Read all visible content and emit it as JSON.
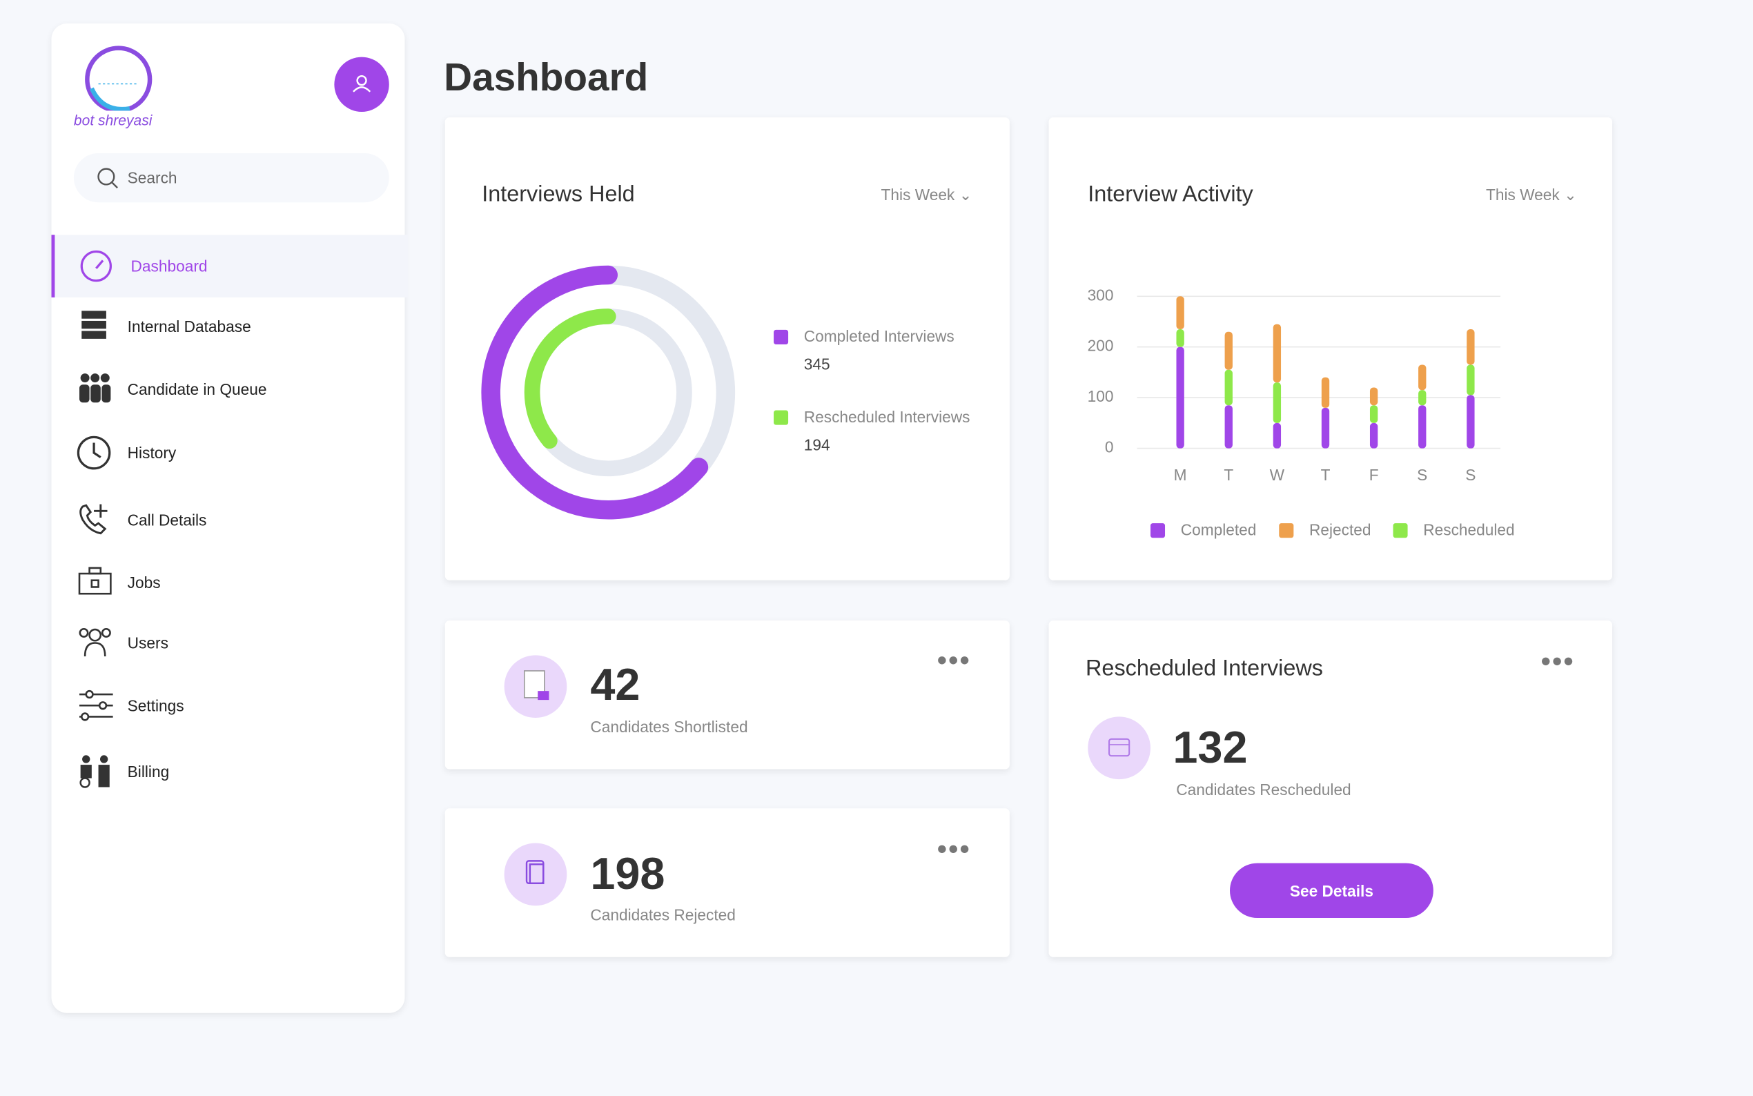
{
  "logo": {
    "text": "bot shreyasi"
  },
  "sidebar": {
    "search_placeholder": "Search",
    "nav": [
      "Dashboard",
      "Internal Database",
      "Candidate in Queue",
      "History",
      "Call Details",
      "Jobs",
      "Users",
      "Settings",
      "Billing"
    ]
  },
  "header": {
    "title": "Dashboard"
  },
  "chart_data": [
    {
      "type": "donut",
      "title": "Interviews Held",
      "period": "This Week",
      "categories": [
        "Completed Interviews",
        "Rescheduled Interviews"
      ],
      "values": [
        345,
        194
      ],
      "colors": [
        "#a046e8",
        "#8ee84a"
      ]
    },
    {
      "type": "bar",
      "stacked": true,
      "title": "Interview Activity",
      "period": "This Week",
      "categories": [
        "M",
        "T",
        "W",
        "T",
        "F",
        "S",
        "S"
      ],
      "series": [
        {
          "name": "Completed",
          "color": "#a046e8",
          "values": [
            200,
            85,
            50,
            80,
            50,
            85,
            105
          ]
        },
        {
          "name": "Rejected",
          "color": "#eea04c",
          "values": [
            65,
            75,
            115,
            60,
            35,
            50,
            70
          ]
        },
        {
          "name": "Rescheduled",
          "color": "#8ee84a",
          "values": [
            35,
            70,
            80,
            0,
            35,
            30,
            60
          ]
        }
      ],
      "ylim": [
        0,
        300
      ],
      "yticks": [
        0,
        100,
        200,
        300
      ],
      "grid": true
    }
  ],
  "stats": [
    {
      "value": 42,
      "label": "Candidates Shortlisted"
    },
    {
      "value": 198,
      "label": "Candidates Rejected"
    }
  ],
  "rescheduled": {
    "title": "Rescheduled Interviews",
    "value": 132,
    "label": "Candidates Rescheduled",
    "button": "See Details"
  }
}
